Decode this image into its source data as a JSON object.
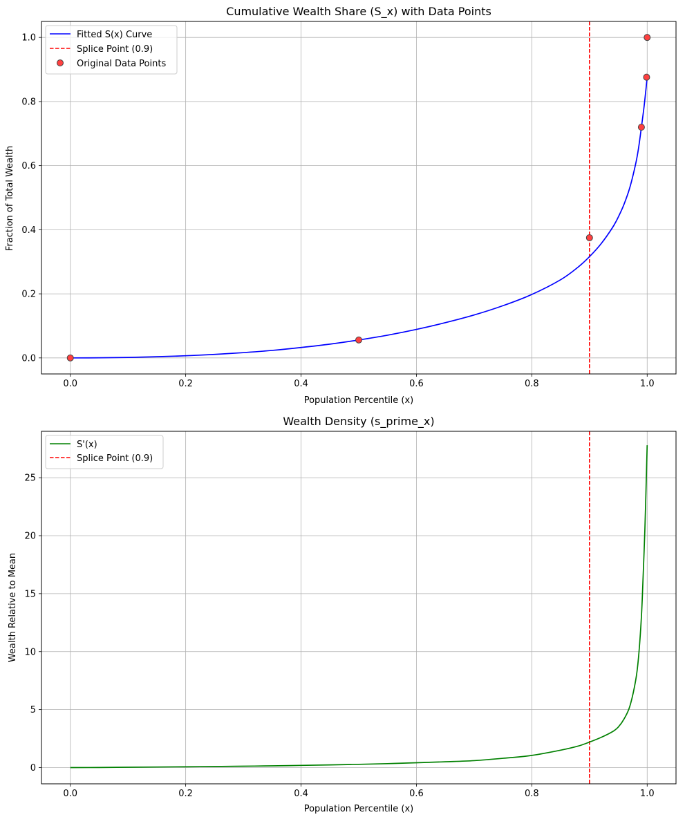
{
  "chart_data": [
    {
      "type": "line",
      "title": "Cumulative Wealth Share (S_x) with Data Points",
      "xlabel": "Population Percentile (x)",
      "ylabel": "Fraction of Total Wealth",
      "xlim": [
        -0.05,
        1.05
      ],
      "ylim": [
        -0.05,
        1.05
      ],
      "xticks": [
        0.0,
        0.2,
        0.4,
        0.6,
        0.8,
        1.0
      ],
      "xtick_labels": [
        "0.0",
        "0.2",
        "0.4",
        "0.6",
        "0.8",
        "1.0"
      ],
      "yticks": [
        0.0,
        0.2,
        0.4,
        0.6,
        0.8,
        1.0
      ],
      "ytick_labels": [
        "0.0",
        "0.2",
        "0.4",
        "0.6",
        "0.8",
        "1.0"
      ],
      "grid": true,
      "legend_position": "top-left",
      "series": [
        {
          "name": "Fitted S(x) Curve",
          "kind": "line",
          "color": "#0000ff",
          "x": [
            0.0,
            0.05,
            0.1,
            0.15,
            0.2,
            0.25,
            0.3,
            0.35,
            0.4,
            0.45,
            0.5,
            0.55,
            0.6,
            0.65,
            0.7,
            0.75,
            0.8,
            0.85,
            0.88,
            0.9,
            0.92,
            0.94,
            0.95,
            0.96,
            0.97,
            0.98,
            0.985,
            0.99,
            0.995,
            1.0
          ],
          "y": [
            0.0,
            0.0004,
            0.0015,
            0.0036,
            0.0067,
            0.011,
            0.0165,
            0.0235,
            0.0325,
            0.043,
            0.056,
            0.071,
            0.089,
            0.11,
            0.134,
            0.163,
            0.198,
            0.244,
            0.283,
            0.316,
            0.356,
            0.407,
            0.44,
            0.48,
            0.532,
            0.605,
            0.654,
            0.72,
            0.79,
            0.875
          ]
        },
        {
          "name": "Original Data Points",
          "kind": "scatter",
          "color": "#ff4040",
          "x": [
            0.0,
            0.5,
            0.9,
            0.99,
            0.999,
            1.0
          ],
          "y": [
            0.0,
            0.056,
            0.375,
            0.72,
            0.876,
            1.0
          ]
        }
      ],
      "vline": {
        "name": "Splice Point (0.9)",
        "x": 0.9,
        "color": "#ff0000"
      }
    },
    {
      "type": "line",
      "title": "Wealth Density (s_prime_x)",
      "xlabel": "Population Percentile (x)",
      "ylabel": "Wealth Relative to Mean",
      "xlim": [
        -0.05,
        1.05
      ],
      "ylim": [
        -1.4,
        29.0
      ],
      "xticks": [
        0.0,
        0.2,
        0.4,
        0.6,
        0.8,
        1.0
      ],
      "xtick_labels": [
        "0.0",
        "0.2",
        "0.4",
        "0.6",
        "0.8",
        "1.0"
      ],
      "yticks": [
        0,
        5,
        10,
        15,
        20,
        25
      ],
      "ytick_labels": [
        "0",
        "5",
        "10",
        "15",
        "20",
        "25"
      ],
      "grid": true,
      "legend_position": "top-left",
      "series": [
        {
          "name": "S'(x)",
          "kind": "line",
          "color": "#008000",
          "x": [
            0.0,
            0.05,
            0.1,
            0.15,
            0.2,
            0.25,
            0.3,
            0.35,
            0.4,
            0.45,
            0.5,
            0.55,
            0.6,
            0.65,
            0.7,
            0.75,
            0.8,
            0.85,
            0.88,
            0.9,
            0.92,
            0.94,
            0.95,
            0.96,
            0.97,
            0.98,
            0.985,
            0.99,
            0.993,
            0.996,
            0.998,
            1.0
          ],
          "y": [
            0.0,
            0.01,
            0.03,
            0.05,
            0.07,
            0.09,
            0.12,
            0.15,
            0.19,
            0.23,
            0.28,
            0.34,
            0.42,
            0.5,
            0.6,
            0.8,
            1.05,
            1.5,
            1.85,
            2.2,
            2.6,
            3.1,
            3.5,
            4.2,
            5.3,
            7.5,
            9.5,
            13.0,
            16.5,
            20.5,
            24.0,
            27.8
          ]
        }
      ],
      "vline": {
        "name": "Splice Point (0.9)",
        "x": 0.9,
        "color": "#ff0000"
      }
    }
  ]
}
